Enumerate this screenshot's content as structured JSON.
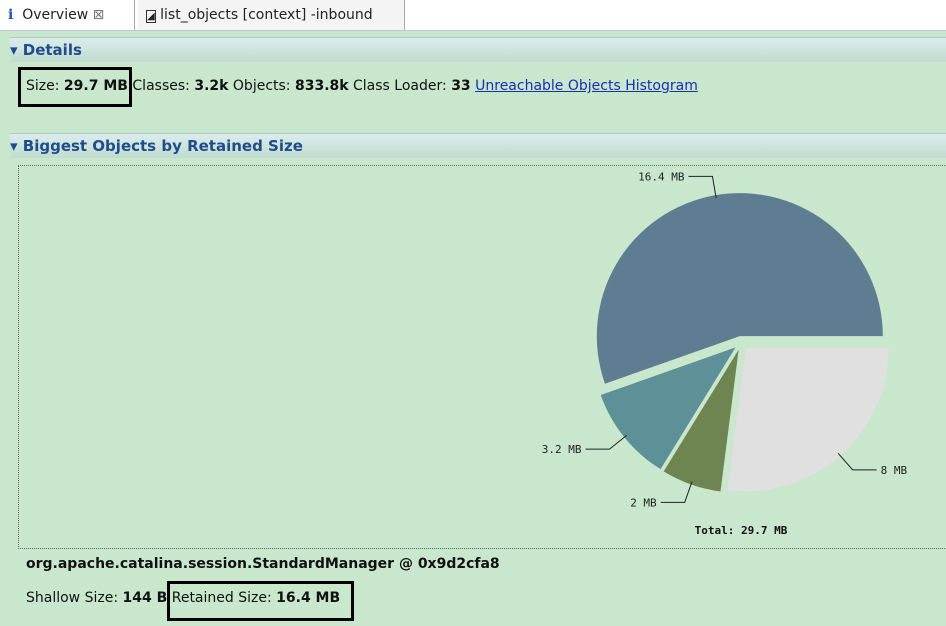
{
  "tabs": [
    {
      "label": "Overview"
    },
    {
      "label": "list_objects [context] -inbound"
    }
  ],
  "details": {
    "title": "Details",
    "items": [
      {
        "label": "Size:",
        "value": "29.7 MB"
      },
      {
        "label": "Classes:",
        "value": "3.2k"
      },
      {
        "label": "Objects:",
        "value": "833.8k"
      },
      {
        "label": "Class Loader:",
        "value": "33"
      }
    ],
    "link": "Unreachable Objects Histogram"
  },
  "biggest": {
    "title": "Biggest Objects by Retained Size",
    "chart_data": {
      "type": "pie",
      "values": [
        16.4,
        3.2,
        2,
        8
      ],
      "value_labels": [
        "16.4 MB",
        "3.2 MB",
        "2 MB",
        "8 MB"
      ],
      "colors": [
        "#5f7d92",
        "#5e9098",
        "#6e8552",
        "#e0e0e0"
      ],
      "total_label": "Total: 29.7 MB"
    },
    "object_name": "org.apache.catalina.session.StandardManager @ 0x9d2cfa8",
    "shallow": {
      "label": "Shallow Size:",
      "value": "144 B"
    },
    "retained": {
      "label": "Retained Size:",
      "value": "16.4 MB"
    }
  }
}
